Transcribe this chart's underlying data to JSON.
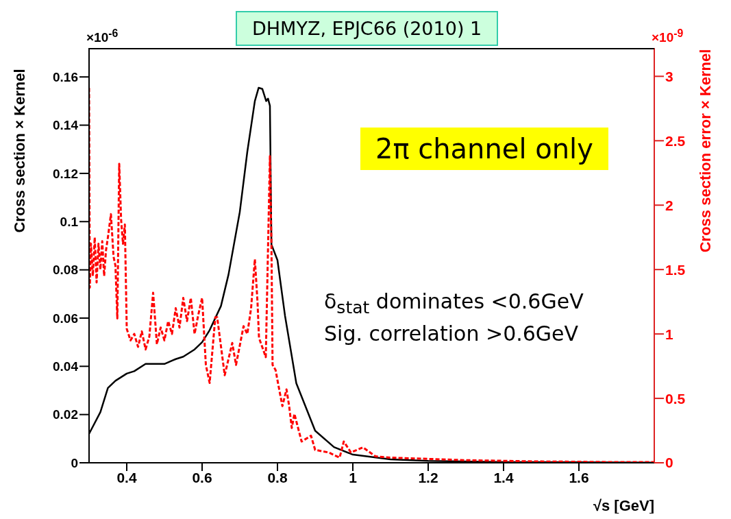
{
  "chart_data": {
    "type": "line",
    "title": "DHMYZ, EPJC66 (2010) 1",
    "xlabel": "√s   [GeV]",
    "ylabel": "Cross section × Kernel",
    "y2label": "Cross section error × Kernel",
    "annotations": [
      "2π channel only",
      "δ$_{stat}$ dominates <0.6GeV",
      "Sig. correlation >0.6GeV",
      "×10$^{-6}$",
      "×10$^{-9}$"
    ],
    "xlim": [
      0.3,
      1.8
    ],
    "xticks": [
      0.4,
      0.6,
      0.8,
      1,
      1.2,
      1.4,
      1.6
    ],
    "ylim": [
      0,
      0.172
    ],
    "yticks": [
      0,
      0.02,
      0.04,
      0.06,
      0.08,
      0.1,
      0.12,
      0.14,
      0.16
    ],
    "y2lim": [
      0,
      3.22
    ],
    "y2ticks": [
      0,
      0.5,
      1,
      1.5,
      2,
      2.5,
      3
    ],
    "series": [
      {
        "color": "#000000",
        "line_style": "solid",
        "x": [
          0.3,
          0.31,
          0.33,
          0.35,
          0.37,
          0.4,
          0.42,
          0.45,
          0.5,
          0.53,
          0.55,
          0.58,
          0.6,
          0.62,
          0.65,
          0.67,
          0.7,
          0.72,
          0.74,
          0.75,
          0.76,
          0.77,
          0.775,
          0.78,
          0.784,
          0.8,
          0.82,
          0.85,
          0.9,
          0.95,
          1,
          1.1,
          1.2,
          1.4,
          1.6,
          1.8
        ],
        "values": [
          0.012,
          0.015,
          0.021,
          0.031,
          0.034,
          0.037,
          0.038,
          0.041,
          0.041,
          0.043,
          0.044,
          0.047,
          0.05,
          0.055,
          0.065,
          0.078,
          0.104,
          0.129,
          0.15,
          0.1555,
          0.155,
          0.15,
          0.151,
          0.148,
          0.0905,
          0.084,
          0.061,
          0.033,
          0.0133,
          0.0065,
          0.0034,
          0.0014,
          0.0008,
          0.0003,
          0.0002,
          0.0001
        ]
      },
      {
        "color": "#ff0000",
        "line_style": "dashed",
        "axis": "y2",
        "x": [
          0.3,
          0.302,
          0.305,
          0.31,
          0.315,
          0.32,
          0.325,
          0.33,
          0.335,
          0.34,
          0.345,
          0.35,
          0.358,
          0.365,
          0.37,
          0.375,
          0.38,
          0.385,
          0.39,
          0.395,
          0.4,
          0.41,
          0.42,
          0.43,
          0.44,
          0.45,
          0.46,
          0.47,
          0.48,
          0.49,
          0.5,
          0.51,
          0.52,
          0.53,
          0.54,
          0.55,
          0.56,
          0.57,
          0.58,
          0.59,
          0.6,
          0.61,
          0.62,
          0.635,
          0.64,
          0.66,
          0.68,
          0.69,
          0.71,
          0.72,
          0.73,
          0.74,
          0.747,
          0.751,
          0.769,
          0.78,
          0.784,
          0.787,
          0.795,
          0.802,
          0.813,
          0.824,
          0.831,
          0.838,
          0.845,
          0.864,
          0.889,
          0.9,
          0.936,
          0.965,
          0.976,
          0.995,
          1.027,
          1.06,
          1.1,
          1.2,
          1.3,
          1.4,
          1.5,
          1.6,
          1.7,
          1.8
        ],
        "values": [
          2.91,
          1.36,
          1.7,
          1.45,
          1.75,
          1.4,
          1.7,
          1.5,
          1.72,
          1.45,
          1.65,
          1.75,
          1.93,
          1.6,
          1.53,
          1.12,
          2.32,
          1.89,
          1.7,
          1.85,
          1.04,
          0.95,
          1.0,
          0.9,
          1.02,
          0.88,
          0.98,
          1.32,
          0.92,
          1.05,
          0.95,
          1.1,
          1.0,
          1.2,
          1.05,
          1.28,
          1.1,
          1.28,
          1.0,
          1.15,
          1.28,
          0.76,
          0.62,
          1.13,
          1.13,
          0.68,
          0.93,
          0.76,
          1.06,
          1.0,
          1.2,
          1.58,
          1.25,
          0.97,
          0.82,
          2.38,
          1.7,
          0.76,
          0.72,
          0.61,
          0.44,
          0.57,
          0.44,
          0.27,
          0.38,
          0.165,
          0.21,
          0.1,
          0.08,
          0.04,
          0.165,
          0.08,
          0.12,
          0.05,
          0.04,
          0.03,
          0.02,
          0.015,
          0.01,
          0.008,
          0.005,
          0.005
        ]
      }
    ]
  }
}
